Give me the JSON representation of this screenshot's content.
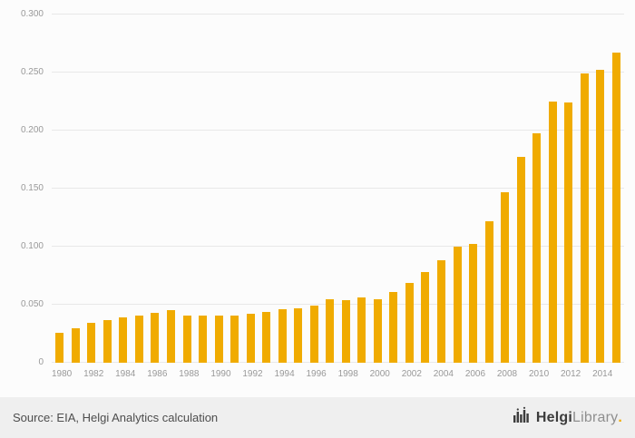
{
  "chart_data": {
    "type": "bar",
    "categories": [
      "1980",
      "1981",
      "1982",
      "1983",
      "1984",
      "1985",
      "1986",
      "1987",
      "1988",
      "1989",
      "1990",
      "1991",
      "1992",
      "1993",
      "1994",
      "1995",
      "1996",
      "1997",
      "1998",
      "1999",
      "2000",
      "2001",
      "2002",
      "2003",
      "2004",
      "2005",
      "2006",
      "2007",
      "2008",
      "2009",
      "2010",
      "2011",
      "2012",
      "2013",
      "2014",
      "2015"
    ],
    "values": [
      0.026,
      0.03,
      0.034,
      0.037,
      0.039,
      0.041,
      0.043,
      0.045,
      0.041,
      0.041,
      0.041,
      0.041,
      0.042,
      0.044,
      0.046,
      0.047,
      0.049,
      0.055,
      0.054,
      0.056,
      0.055,
      0.061,
      0.069,
      0.078,
      0.088,
      0.1,
      0.102,
      0.122,
      0.147,
      0.177,
      0.198,
      0.225,
      0.224,
      0.249,
      0.252,
      0.267
    ],
    "title": "",
    "xlabel": "",
    "ylabel": "",
    "ylim": [
      0,
      0.3
    ],
    "yticks": [
      0,
      0.05,
      0.1,
      0.15,
      0.2,
      0.25,
      0.3
    ],
    "ytick_labels": [
      "0",
      "0.050",
      "0.100",
      "0.150",
      "0.200",
      "0.250",
      "0.300"
    ],
    "xtick_every": 2,
    "bar_color": "#F0AB00",
    "grid": true,
    "legend_position": "none"
  },
  "footer": {
    "source": "Source: EIA, Helgi Analytics calculation",
    "logo": {
      "name_primary": "Helgi",
      "name_secondary": "Library",
      "suffix": "."
    }
  }
}
